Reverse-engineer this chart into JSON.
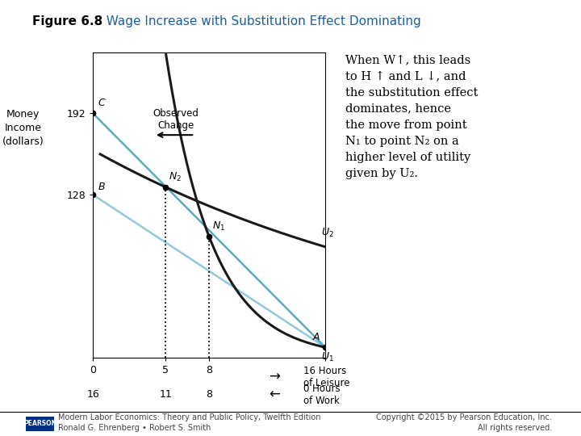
{
  "title_bold": "Figure 6.8",
  "title_colored": "  Wage Increase with Substitution Effect Dominating",
  "background_color": "#ffffff",
  "budget1_color": "#90c8dc",
  "budget2_color": "#5aaac0",
  "curve_color": "#1a1a1a",
  "point_color": "#1a1a1a",
  "budget1_yintercept": 128,
  "budget1_slope": -7.5,
  "budget2_yintercept": 192,
  "budget2_slope": -11.5,
  "xlim": [
    0,
    16
  ],
  "ylim": [
    0,
    240
  ],
  "ytick_vals": [
    128,
    192
  ],
  "xtick_top_vals": [
    0,
    5,
    8
  ],
  "xtick_top_labels": [
    "0",
    "5",
    "8"
  ],
  "xtick_bot_vals": [
    0,
    5,
    8
  ],
  "xtick_bot_labels": [
    "16",
    "11",
    "8"
  ],
  "leisure_arrow_label": "16 Hours\nof Leisure",
  "work_arrow_label": "0 Hours\nof Work",
  "footer_left": "Modern Labor Economics: Theory and Public Policy, Twelfth Edition\nRonald G. Ehrenberg • Robert S. Smith",
  "footer_right": "Copyright ©2015 by Pearson Education, Inc.\nAll rights reserved.",
  "ann_line1": "When W↑, this leads",
  "ann_line2": "to H ↑ and L ↓, and",
  "ann_line3": "the substitution effect",
  "ann_line4": "dominates, hence",
  "ann_line5": "the move from point",
  "ann_line6": "N₁ to point N₂ on a",
  "ann_line7": "higher level of utility",
  "ann_line8": "given by U₂."
}
